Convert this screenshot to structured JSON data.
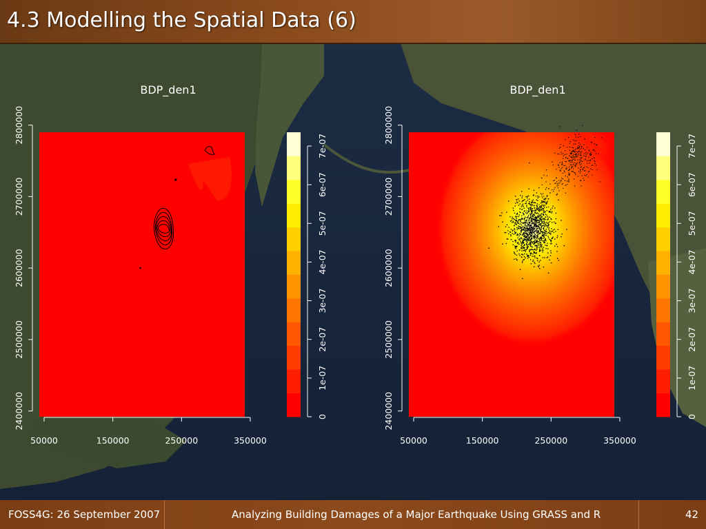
{
  "header": {
    "title": "4.3 Modelling the Spatial Data (6)"
  },
  "footer": {
    "left": "FOSS4G: 26 September 2007",
    "center": "Analyzing Building Damages of a Major Earthquake Using GRASS and R",
    "page": "42"
  },
  "colors": {
    "ramp": [
      "#ff0000",
      "#ff1d00",
      "#ff3b00",
      "#ff5800",
      "#ff7600",
      "#ff9400",
      "#ffb100",
      "#ffcf00",
      "#ffed00",
      "#ffff29",
      "#ffff7c",
      "#ffffd4"
    ],
    "point_color": "#000000",
    "contour_color": "#000000"
  },
  "chart_data": [
    {
      "type": "heatmap",
      "title": "BDP_den1",
      "overlay": "contour",
      "x_ticks": [
        "50000",
        "150000",
        "250000",
        "350000"
      ],
      "x_tick_values": [
        50000,
        150000,
        250000,
        350000
      ],
      "y_ticks": [
        "2400000",
        "2500000",
        "2600000",
        "2700000",
        "2800000"
      ],
      "y_tick_values": [
        2400000,
        2500000,
        2600000,
        2700000,
        2800000
      ],
      "xlim": [
        43000,
        342000
      ],
      "ylim": [
        2392000,
        2790000
      ],
      "density_peak": {
        "x": 222000,
        "y": 2655000,
        "value": 6.9e-07
      },
      "density_secondary": {
        "x": 290000,
        "y": 2765000
      },
      "colorbar_ticks": [
        "0",
        "1e-07",
        "2e-07",
        "3e-07",
        "4e-07",
        "5e-07",
        "6e-07",
        "7e-07"
      ],
      "colorbar_tick_values": [
        0,
        1e-07,
        2e-07,
        3e-07,
        4e-07,
        5e-07,
        6e-07,
        7e-07
      ],
      "colorbar_range": [
        0,
        7e-07
      ]
    },
    {
      "type": "heatmap",
      "title": "BDP_den1",
      "overlay": "points",
      "x_ticks": [
        "50000",
        "150000",
        "250000",
        "350000"
      ],
      "x_tick_values": [
        50000,
        150000,
        250000,
        350000
      ],
      "y_ticks": [
        "2400000",
        "2500000",
        "2600000",
        "2700000",
        "2800000"
      ],
      "y_tick_values": [
        2400000,
        2500000,
        2600000,
        2700000,
        2800000
      ],
      "xlim": [
        43000,
        342000
      ],
      "ylim": [
        2392000,
        2790000
      ],
      "density_peak": {
        "x": 222000,
        "y": 2655000,
        "value": 6.9e-07
      },
      "density_secondary": {
        "x": 290000,
        "y": 2765000
      },
      "colorbar_ticks": [
        "0",
        "1e-07",
        "2e-07",
        "3e-07",
        "4e-07",
        "5e-07",
        "6e-07",
        "7e-07"
      ],
      "colorbar_tick_values": [
        0,
        1e-07,
        2e-07,
        3e-07,
        4e-07,
        5e-07,
        6e-07,
        7e-07
      ],
      "colorbar_range": [
        0,
        7e-07
      ]
    }
  ]
}
